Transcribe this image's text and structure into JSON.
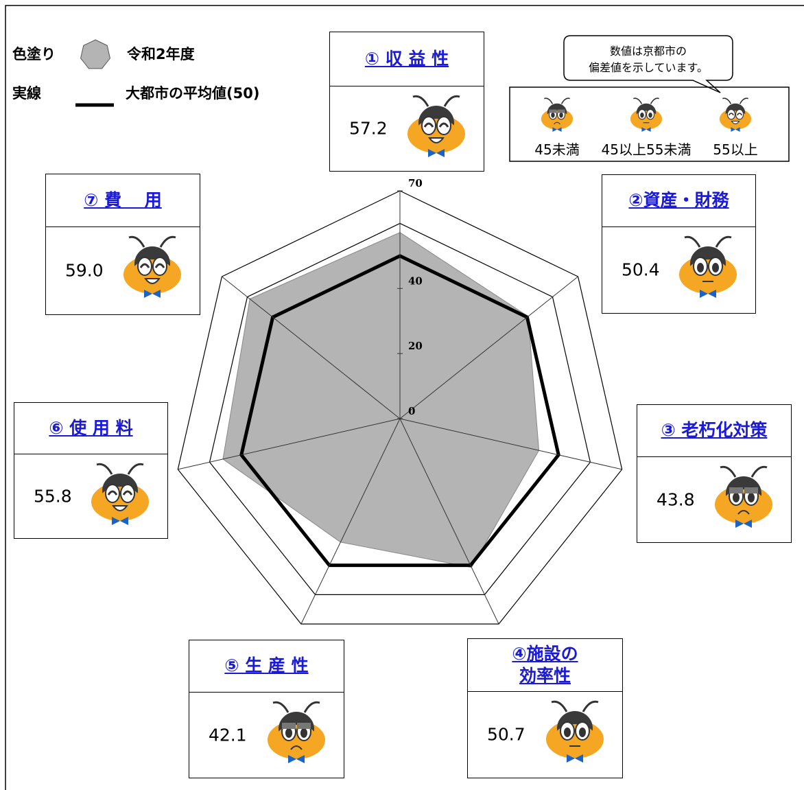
{
  "chart_data": {
    "type": "radar",
    "categories": [
      "① 収 益 性",
      "②資産・財務",
      "③ 老朽化対策",
      "④施設の\n効率性",
      "⑤ 生 産 性",
      "⑥ 使 用 料",
      "⑦ 費　 用"
    ],
    "series": [
      {
        "name": "令和2年度",
        "key_label": "色塗り",
        "color": "#b4b4b4",
        "values": [
          57.2,
          50.4,
          43.8,
          50.7,
          42.1,
          55.8,
          59.0
        ],
        "value_labels": [
          "57.2",
          "50.4",
          "43.8",
          "50.7",
          "42.1",
          "55.8",
          "59.0"
        ]
      },
      {
        "name": "大都市の平均値(50)",
        "key_label": "実線",
        "color": "#000000",
        "values": [
          50,
          50,
          50,
          50,
          50,
          50,
          50
        ]
      }
    ],
    "ylim": [
      0,
      70
    ],
    "yticks": [
      0,
      20,
      40,
      70
    ],
    "rings": [
      60,
      70
    ],
    "note": "数値は京都市の\n偏差値を示しています。",
    "thresholds": [
      45,
      55
    ],
    "rating_key": [
      "45未満",
      "45以上55未満",
      "55以上"
    ]
  }
}
